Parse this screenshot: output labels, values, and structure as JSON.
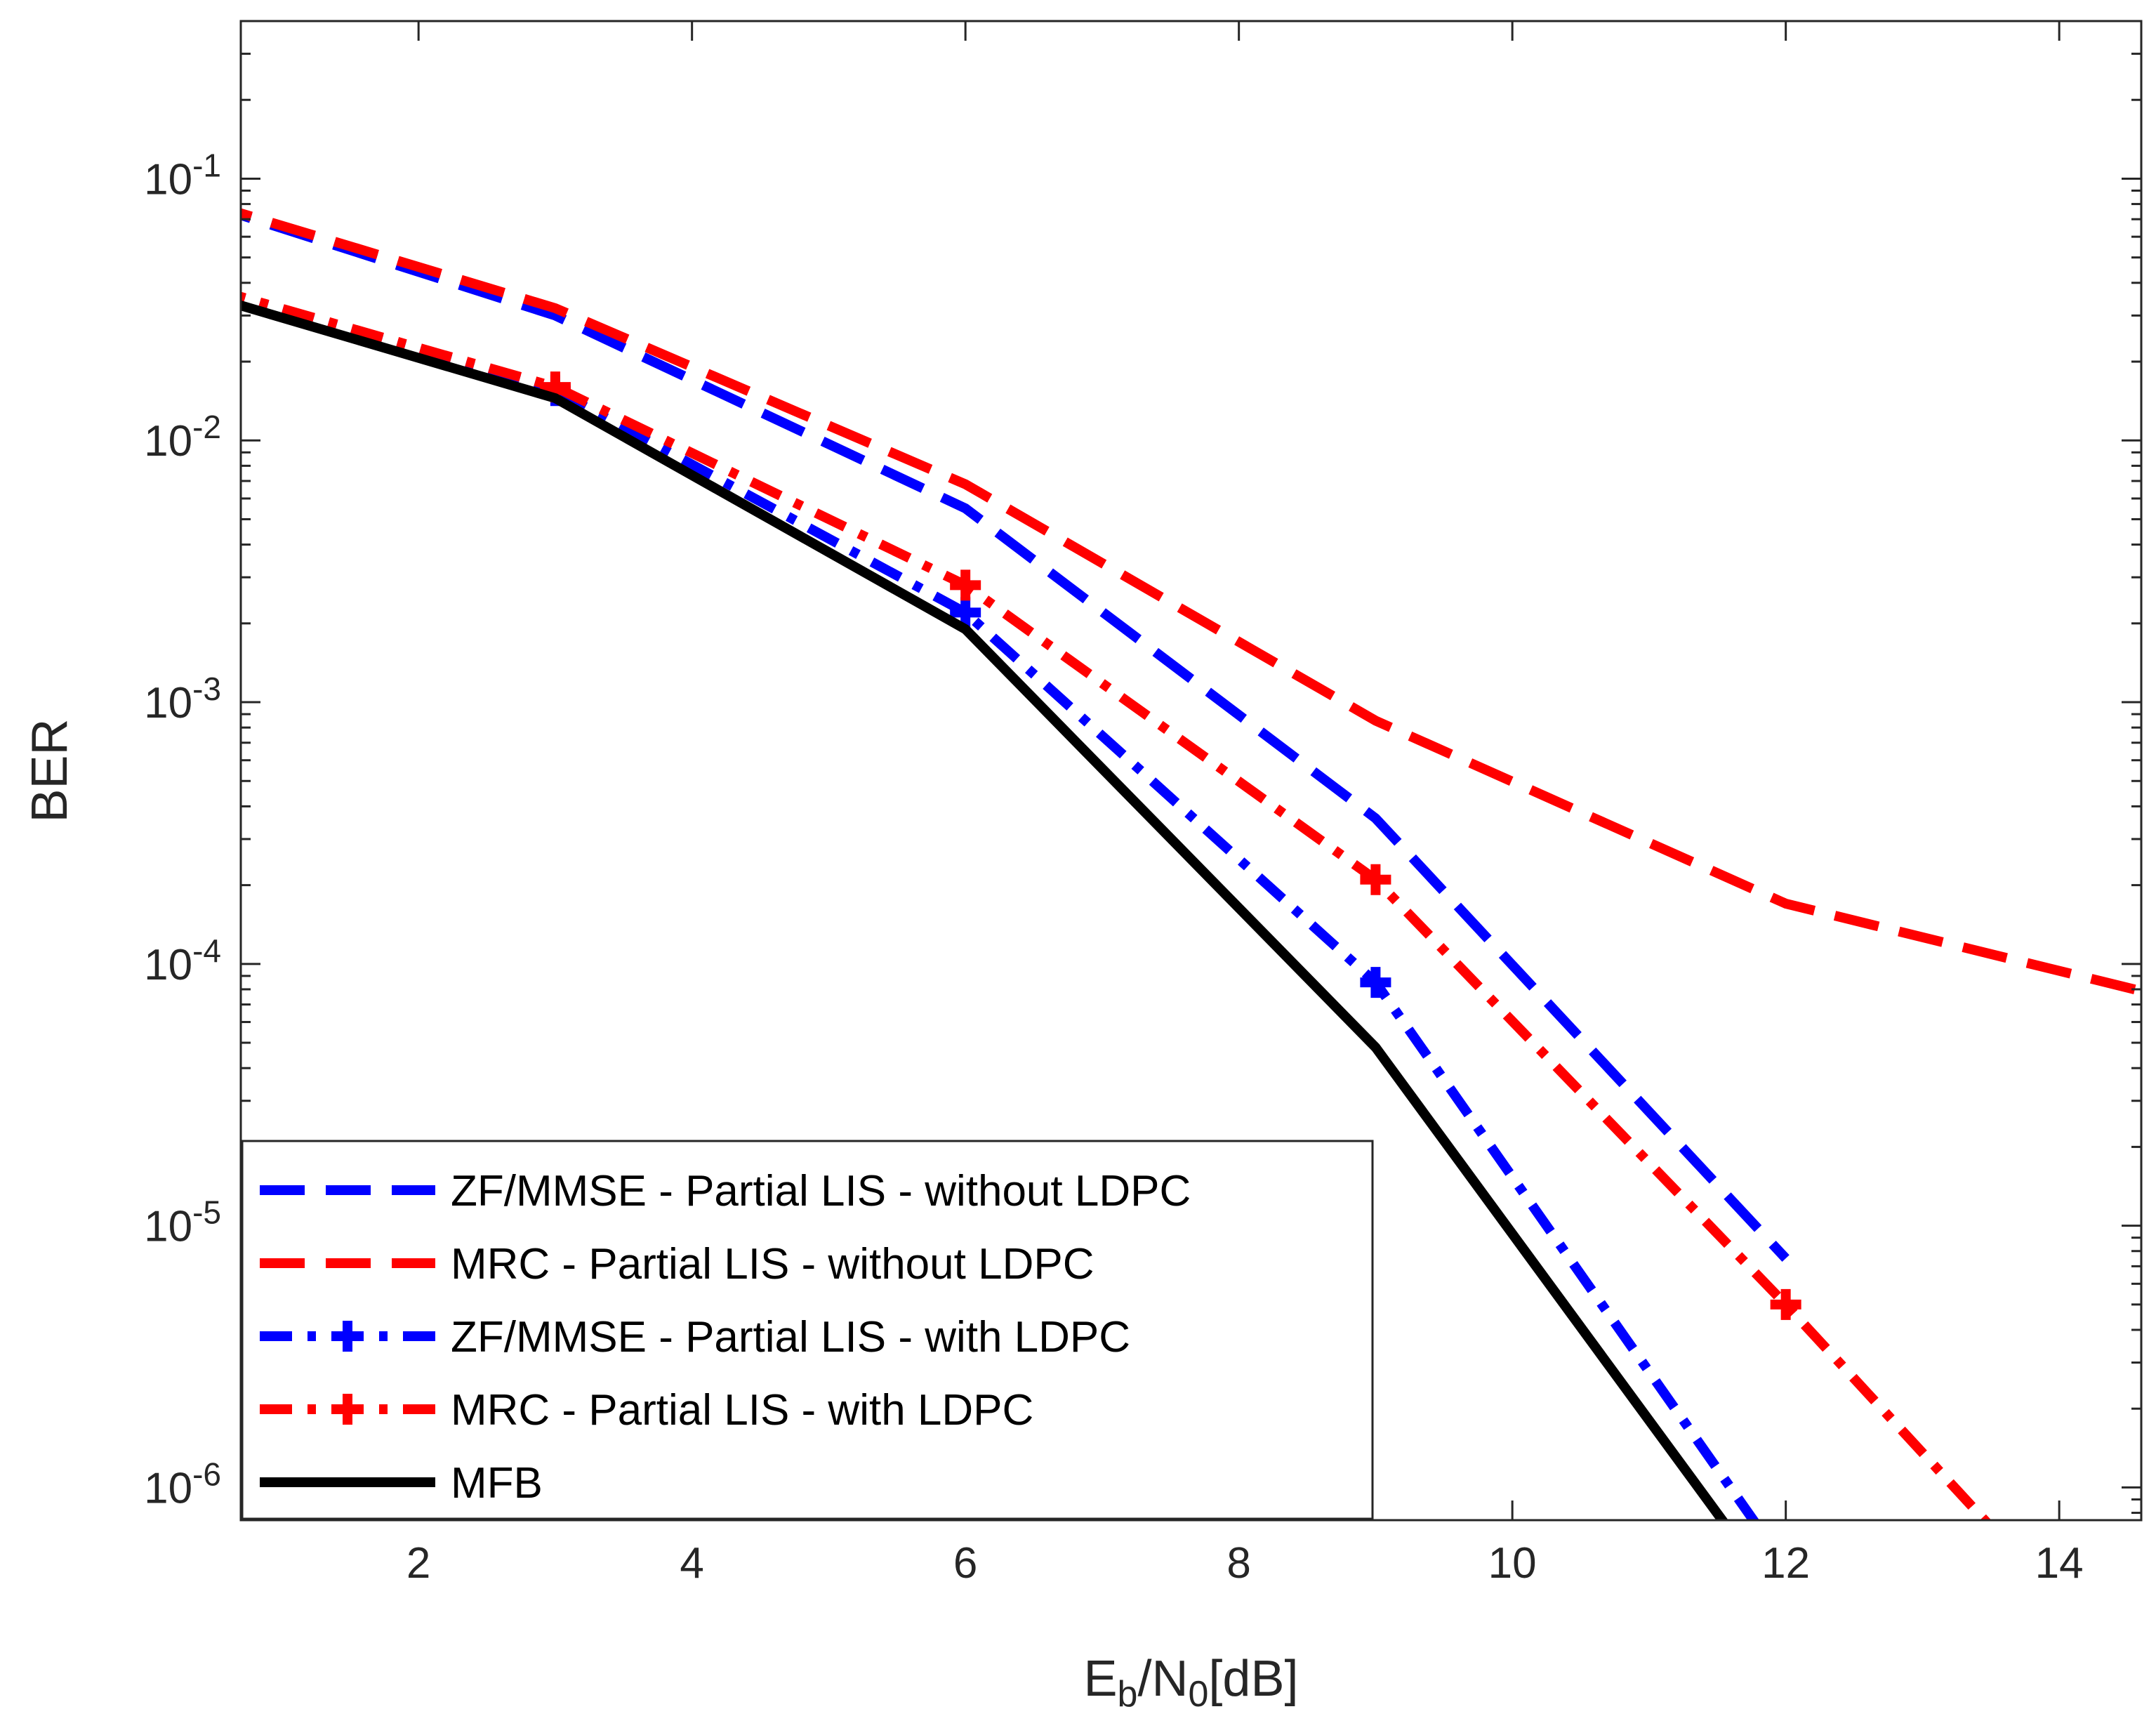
{
  "chart_data": {
    "type": "line",
    "title": "",
    "xlabel": {
      "base": "E",
      "sub1": "b",
      "mid": "/N",
      "sub2": "0",
      "tail": "[dB]"
    },
    "ylabel": "BER",
    "xlim": [
      0.7,
      14.6
    ],
    "ylim": [
      7.5e-07,
      0.4
    ],
    "yscale": "log",
    "grid": false,
    "legend_position": "bottom-left",
    "xticks": [
      2,
      4,
      6,
      8,
      10,
      12,
      14
    ],
    "yticks": [
      {
        "value": 0.1,
        "base": "10",
        "exp": "-1"
      },
      {
        "value": 0.01,
        "base": "10",
        "exp": "-2"
      },
      {
        "value": 0.001,
        "base": "10",
        "exp": "-3"
      },
      {
        "value": 0.0001,
        "base": "10",
        "exp": "-4"
      },
      {
        "value": 1e-05,
        "base": "10",
        "exp": "-5"
      },
      {
        "value": 1e-06,
        "base": "10",
        "exp": "-6"
      }
    ],
    "series": [
      {
        "name": "ZF/MMSE - Partial LIS - without LDPC",
        "color": "#0000ff",
        "style": "dashed",
        "marker": "none",
        "x": [
          0,
          3,
          6,
          9,
          12
        ],
        "y": [
          0.095,
          0.03,
          0.0055,
          0.00036,
          7.5e-06
        ]
      },
      {
        "name": "MRC - Partial LIS - without LDPC",
        "color": "#ff0000",
        "style": "dashed",
        "marker": "none",
        "x": [
          0,
          3,
          6,
          9,
          12,
          15
        ],
        "y": [
          0.095,
          0.032,
          0.0068,
          0.00085,
          0.00017,
          7e-05
        ]
      },
      {
        "name": "ZF/MMSE - Partial LIS - with LDPC",
        "color": "#0000ff",
        "style": "dashdot",
        "marker": "plus",
        "x": [
          0,
          3,
          6,
          9,
          12
        ],
        "y": [
          0.045,
          0.0155,
          0.0022,
          8.5e-05,
          5e-07
        ]
      },
      {
        "name": "MRC - Partial LIS - with LDPC",
        "color": "#ff0000",
        "style": "dashdot",
        "marker": "plus",
        "x": [
          0,
          3,
          6,
          9,
          12,
          15
        ],
        "y": [
          0.045,
          0.016,
          0.0028,
          0.00021,
          5e-06,
          1e-07
        ]
      },
      {
        "name": "MFB",
        "color": "#000000",
        "style": "solid",
        "marker": "none",
        "x": [
          0,
          3,
          6,
          9,
          12
        ],
        "y": [
          0.042,
          0.0145,
          0.0019,
          4.8e-05,
          3.5e-07
        ]
      }
    ]
  }
}
